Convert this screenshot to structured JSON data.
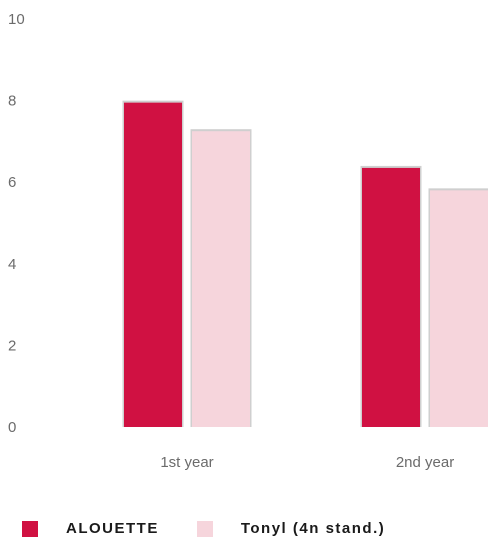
{
  "chart_data": {
    "type": "bar",
    "categories": [
      "1st year",
      "2nd year"
    ],
    "series": [
      {
        "name": "ALOUETTE",
        "values": [
          7.95,
          6.35
        ],
        "color": "#d01142"
      },
      {
        "name": "Tonyl (4n stand.)",
        "values": [
          7.25,
          5.8
        ],
        "color": "#f6d5dc"
      }
    ],
    "ylim": [
      0,
      10
    ],
    "yticks": [
      0,
      2,
      4,
      6,
      8,
      10
    ],
    "title": "",
    "xlabel": "",
    "ylabel": "",
    "grid": false,
    "legend": "bottom-left"
  }
}
